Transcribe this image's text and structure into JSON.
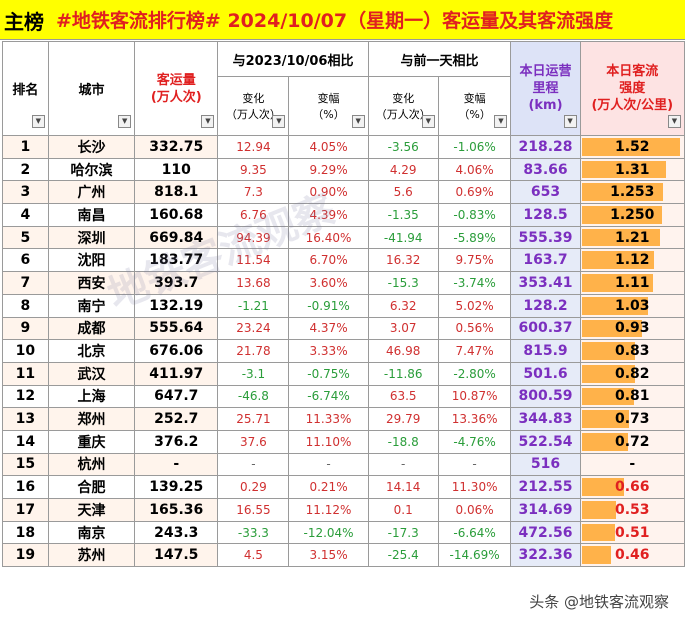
{
  "title": {
    "tag": "主榜",
    "main": "#地铁客流排行榜# 2024/10/07（星期一）客运量及其客流强度"
  },
  "headers": {
    "rank": "排名",
    "city": "城市",
    "flow": "客运量\n(万人次)",
    "yoy_group": "与2023/10/06相比",
    "dod_group": "与前一天相比",
    "change": "变化\n（万人次）",
    "pct": "变幅\n（%）",
    "mileage": "本日运营\n里程\n(km)",
    "intensity": "本日客流\n强度\n(万人次/公里)"
  },
  "rows": [
    {
      "rank": "1",
      "city": "长沙",
      "flow": "332.75",
      "yoy_chg": "12.94",
      "yoy_pct": "4.05%",
      "dod_chg": "-3.56",
      "dod_pct": "-1.06%",
      "mileage": "218.28",
      "intensity": "1.52",
      "level": 1.52
    },
    {
      "rank": "2",
      "city": "哈尔滨",
      "flow": "110",
      "yoy_chg": "9.35",
      "yoy_pct": "9.29%",
      "dod_chg": "4.29",
      "dod_pct": "4.06%",
      "mileage": "83.66",
      "intensity": "1.31",
      "level": 1.31
    },
    {
      "rank": "3",
      "city": "广州",
      "flow": "818.1",
      "yoy_chg": "7.3",
      "yoy_pct": "0.90%",
      "dod_chg": "5.6",
      "dod_pct": "0.69%",
      "mileage": "653",
      "intensity": "1.253",
      "level": 1.253
    },
    {
      "rank": "4",
      "city": "南昌",
      "flow": "160.68",
      "yoy_chg": "6.76",
      "yoy_pct": "4.39%",
      "dod_chg": "-1.35",
      "dod_pct": "-0.83%",
      "mileage": "128.5",
      "intensity": "1.250",
      "level": 1.25
    },
    {
      "rank": "5",
      "city": "深圳",
      "flow": "669.84",
      "yoy_chg": "94.39",
      "yoy_pct": "16.40%",
      "dod_chg": "-41.94",
      "dod_pct": "-5.89%",
      "mileage": "555.39",
      "intensity": "1.21",
      "level": 1.21
    },
    {
      "rank": "6",
      "city": "沈阳",
      "flow": "183.77",
      "yoy_chg": "11.54",
      "yoy_pct": "6.70%",
      "dod_chg": "16.32",
      "dod_pct": "9.75%",
      "mileage": "163.7",
      "intensity": "1.12",
      "level": 1.12
    },
    {
      "rank": "7",
      "city": "西安",
      "flow": "393.7",
      "yoy_chg": "13.68",
      "yoy_pct": "3.60%",
      "dod_chg": "-15.3",
      "dod_pct": "-3.74%",
      "mileage": "353.41",
      "intensity": "1.11",
      "level": 1.11
    },
    {
      "rank": "8",
      "city": "南宁",
      "flow": "132.19",
      "yoy_chg": "-1.21",
      "yoy_pct": "-0.91%",
      "dod_chg": "6.32",
      "dod_pct": "5.02%",
      "mileage": "128.2",
      "intensity": "1.03",
      "level": 1.03
    },
    {
      "rank": "9",
      "city": "成都",
      "flow": "555.64",
      "yoy_chg": "23.24",
      "yoy_pct": "4.37%",
      "dod_chg": "3.07",
      "dod_pct": "0.56%",
      "mileage": "600.37",
      "intensity": "0.93",
      "level": 0.93
    },
    {
      "rank": "10",
      "city": "北京",
      "flow": "676.06",
      "yoy_chg": "21.78",
      "yoy_pct": "3.33%",
      "dod_chg": "46.98",
      "dod_pct": "7.47%",
      "mileage": "815.9",
      "intensity": "0.83",
      "level": 0.83
    },
    {
      "rank": "11",
      "city": "武汉",
      "flow": "411.97",
      "yoy_chg": "-3.1",
      "yoy_pct": "-0.75%",
      "dod_chg": "-11.86",
      "dod_pct": "-2.80%",
      "mileage": "501.6",
      "intensity": "0.82",
      "level": 0.82
    },
    {
      "rank": "12",
      "city": "上海",
      "flow": "647.7",
      "yoy_chg": "-46.8",
      "yoy_pct": "-6.74%",
      "dod_chg": "63.5",
      "dod_pct": "10.87%",
      "mileage": "800.59",
      "intensity": "0.81",
      "level": 0.81
    },
    {
      "rank": "13",
      "city": "郑州",
      "flow": "252.7",
      "yoy_chg": "25.71",
      "yoy_pct": "11.33%",
      "dod_chg": "29.79",
      "dod_pct": "13.36%",
      "mileage": "344.83",
      "intensity": "0.73",
      "level": 0.73
    },
    {
      "rank": "14",
      "city": "重庆",
      "flow": "376.2",
      "yoy_chg": "37.6",
      "yoy_pct": "11.10%",
      "dod_chg": "-18.8",
      "dod_pct": "-4.76%",
      "mileage": "522.54",
      "intensity": "0.72",
      "level": 0.72
    },
    {
      "rank": "15",
      "city": "杭州",
      "flow": "-",
      "yoy_chg": "-",
      "yoy_pct": "-",
      "dod_chg": "-",
      "dod_pct": "-",
      "mileage": "516",
      "intensity": "-",
      "level": 0
    },
    {
      "rank": "16",
      "city": "合肥",
      "flow": "139.25",
      "yoy_chg": "0.29",
      "yoy_pct": "0.21%",
      "dod_chg": "14.14",
      "dod_pct": "11.30%",
      "mileage": "212.55",
      "intensity": "0.66",
      "level": 0.66
    },
    {
      "rank": "17",
      "city": "天津",
      "flow": "165.36",
      "yoy_chg": "16.55",
      "yoy_pct": "11.12%",
      "dod_chg": "0.1",
      "dod_pct": "0.06%",
      "mileage": "314.69",
      "intensity": "0.53",
      "level": 0.53
    },
    {
      "rank": "18",
      "city": "南京",
      "flow": "243.3",
      "yoy_chg": "-33.3",
      "yoy_pct": "-12.04%",
      "dod_chg": "-17.3",
      "dod_pct": "-6.64%",
      "mileage": "472.56",
      "intensity": "0.51",
      "level": 0.51
    },
    {
      "rank": "19",
      "city": "苏州",
      "flow": "147.5",
      "yoy_chg": "4.5",
      "yoy_pct": "3.15%",
      "dod_chg": "-25.4",
      "dod_pct": "-14.69%",
      "mileage": "322.36",
      "intensity": "0.46",
      "level": 0.46
    }
  ],
  "watermark": "地铁客流观察",
  "footer": "头条 @地铁客流观察"
}
